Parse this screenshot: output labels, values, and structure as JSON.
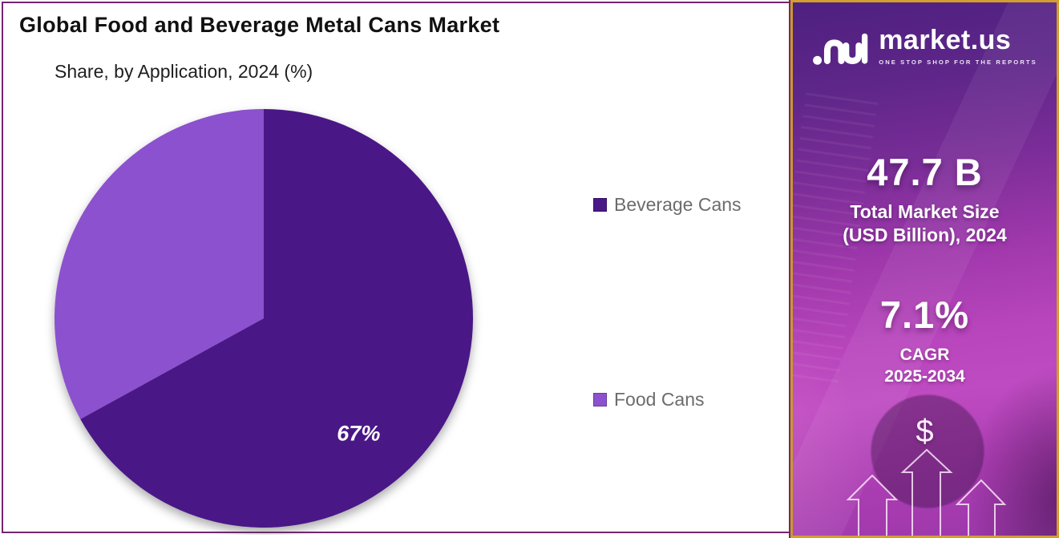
{
  "chart": {
    "title": "Global Food and Beverage Metal Cans Market",
    "subtitle": "Share, by Application, 2024 (%)"
  },
  "chart_data": {
    "type": "pie",
    "title": "Global Food and Beverage Metal Cans Market",
    "subtitle": "Share, by Application, 2024 (%)",
    "unit": "%",
    "start_angle_deg": 0,
    "direction": "clockwise",
    "legend_position": "right",
    "slices": [
      {
        "label": "Beverage Cans",
        "value": 67,
        "color": "#4A1787",
        "data_label": "67%"
      },
      {
        "label": "Food Cans",
        "value": 33,
        "color": "#8C51CE",
        "data_label": ""
      }
    ]
  },
  "sidebar": {
    "brand": "market.us",
    "tagline": "ONE STOP SHOP FOR THE REPORTS",
    "market_size_value": "47.7 B",
    "market_size_label1": "Total Market Size",
    "market_size_label2": "(USD Billion), 2024",
    "cagr_value": "7.1%",
    "cagr_label1": "CAGR",
    "cagr_label2": "2025-2034",
    "dollar_symbol": "$"
  },
  "colors": {
    "left_panel_border": "#74256F",
    "sidebar_border": "#D39E2E",
    "legend_text": "#6C6C6C",
    "pie_label": "#FFFFFF"
  }
}
